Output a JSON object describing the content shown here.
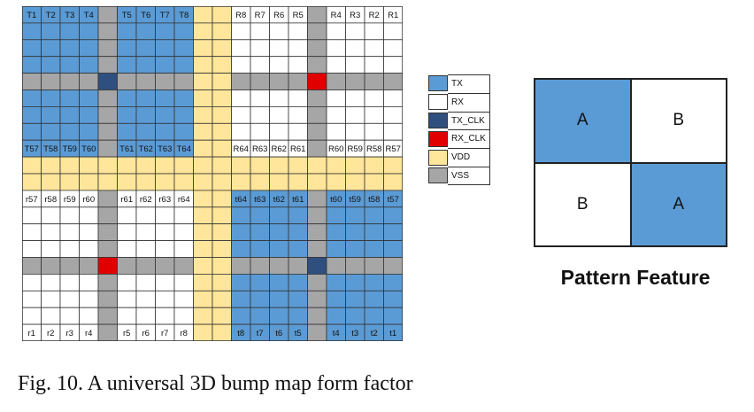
{
  "colors": {
    "tx": "#5b9bd5",
    "rx": "#ffffff",
    "tx_clk": "#2f4f7f",
    "rx_clk": "#e00000",
    "vdd": "#ffe69a",
    "vss": "#a6a6a6",
    "grid_line": "#333333"
  },
  "bump_map": {
    "legend": [
      {
        "key": "tx",
        "label": "TX"
      },
      {
        "key": "rx",
        "label": "RX"
      },
      {
        "key": "tx_clk",
        "label": "TX_CLK"
      },
      {
        "key": "rx_clk",
        "label": "RX_CLK"
      },
      {
        "key": "vdd",
        "label": "VDD"
      },
      {
        "key": "vss",
        "label": "VSS"
      }
    ],
    "row_labels": [
      {
        "row": 0,
        "labels": [
          "T1",
          "T2",
          "T3",
          "T4",
          "",
          "T5",
          "T6",
          "T7",
          "T8",
          "",
          "",
          "R8",
          "R7",
          "R6",
          "R5",
          "",
          "R4",
          "R3",
          "R2",
          "R1"
        ]
      },
      {
        "row": 8,
        "labels": [
          "T57",
          "T58",
          "T59",
          "T60",
          "",
          "T61",
          "T62",
          "T63",
          "T64",
          "",
          "",
          "R64",
          "R63",
          "R62",
          "R61",
          "",
          "R60",
          "R59",
          "R58",
          "R57"
        ]
      },
      {
        "row": 11,
        "labels": [
          "r57",
          "r58",
          "r59",
          "r60",
          "",
          "r61",
          "r62",
          "r63",
          "r64",
          "",
          "",
          "t64",
          "t63",
          "t62",
          "t61",
          "",
          "t60",
          "t59",
          "t58",
          "t57"
        ]
      },
      {
        "row": 19,
        "labels": [
          "r1",
          "r2",
          "r3",
          "r4",
          "",
          "r5",
          "r6",
          "r7",
          "r8",
          "",
          "",
          "t8",
          "t7",
          "t6",
          "t5",
          "",
          "t4",
          "t3",
          "t2",
          "t1"
        ]
      }
    ]
  },
  "pattern": {
    "cells": [
      {
        "label": "A",
        "key": "tx"
      },
      {
        "label": "B",
        "key": "rx"
      },
      {
        "label": "B",
        "key": "rx"
      },
      {
        "label": "A",
        "key": "tx"
      }
    ],
    "title": "Pattern Feature"
  },
  "caption": "Fig. 10. A universal 3D bump map form factor"
}
